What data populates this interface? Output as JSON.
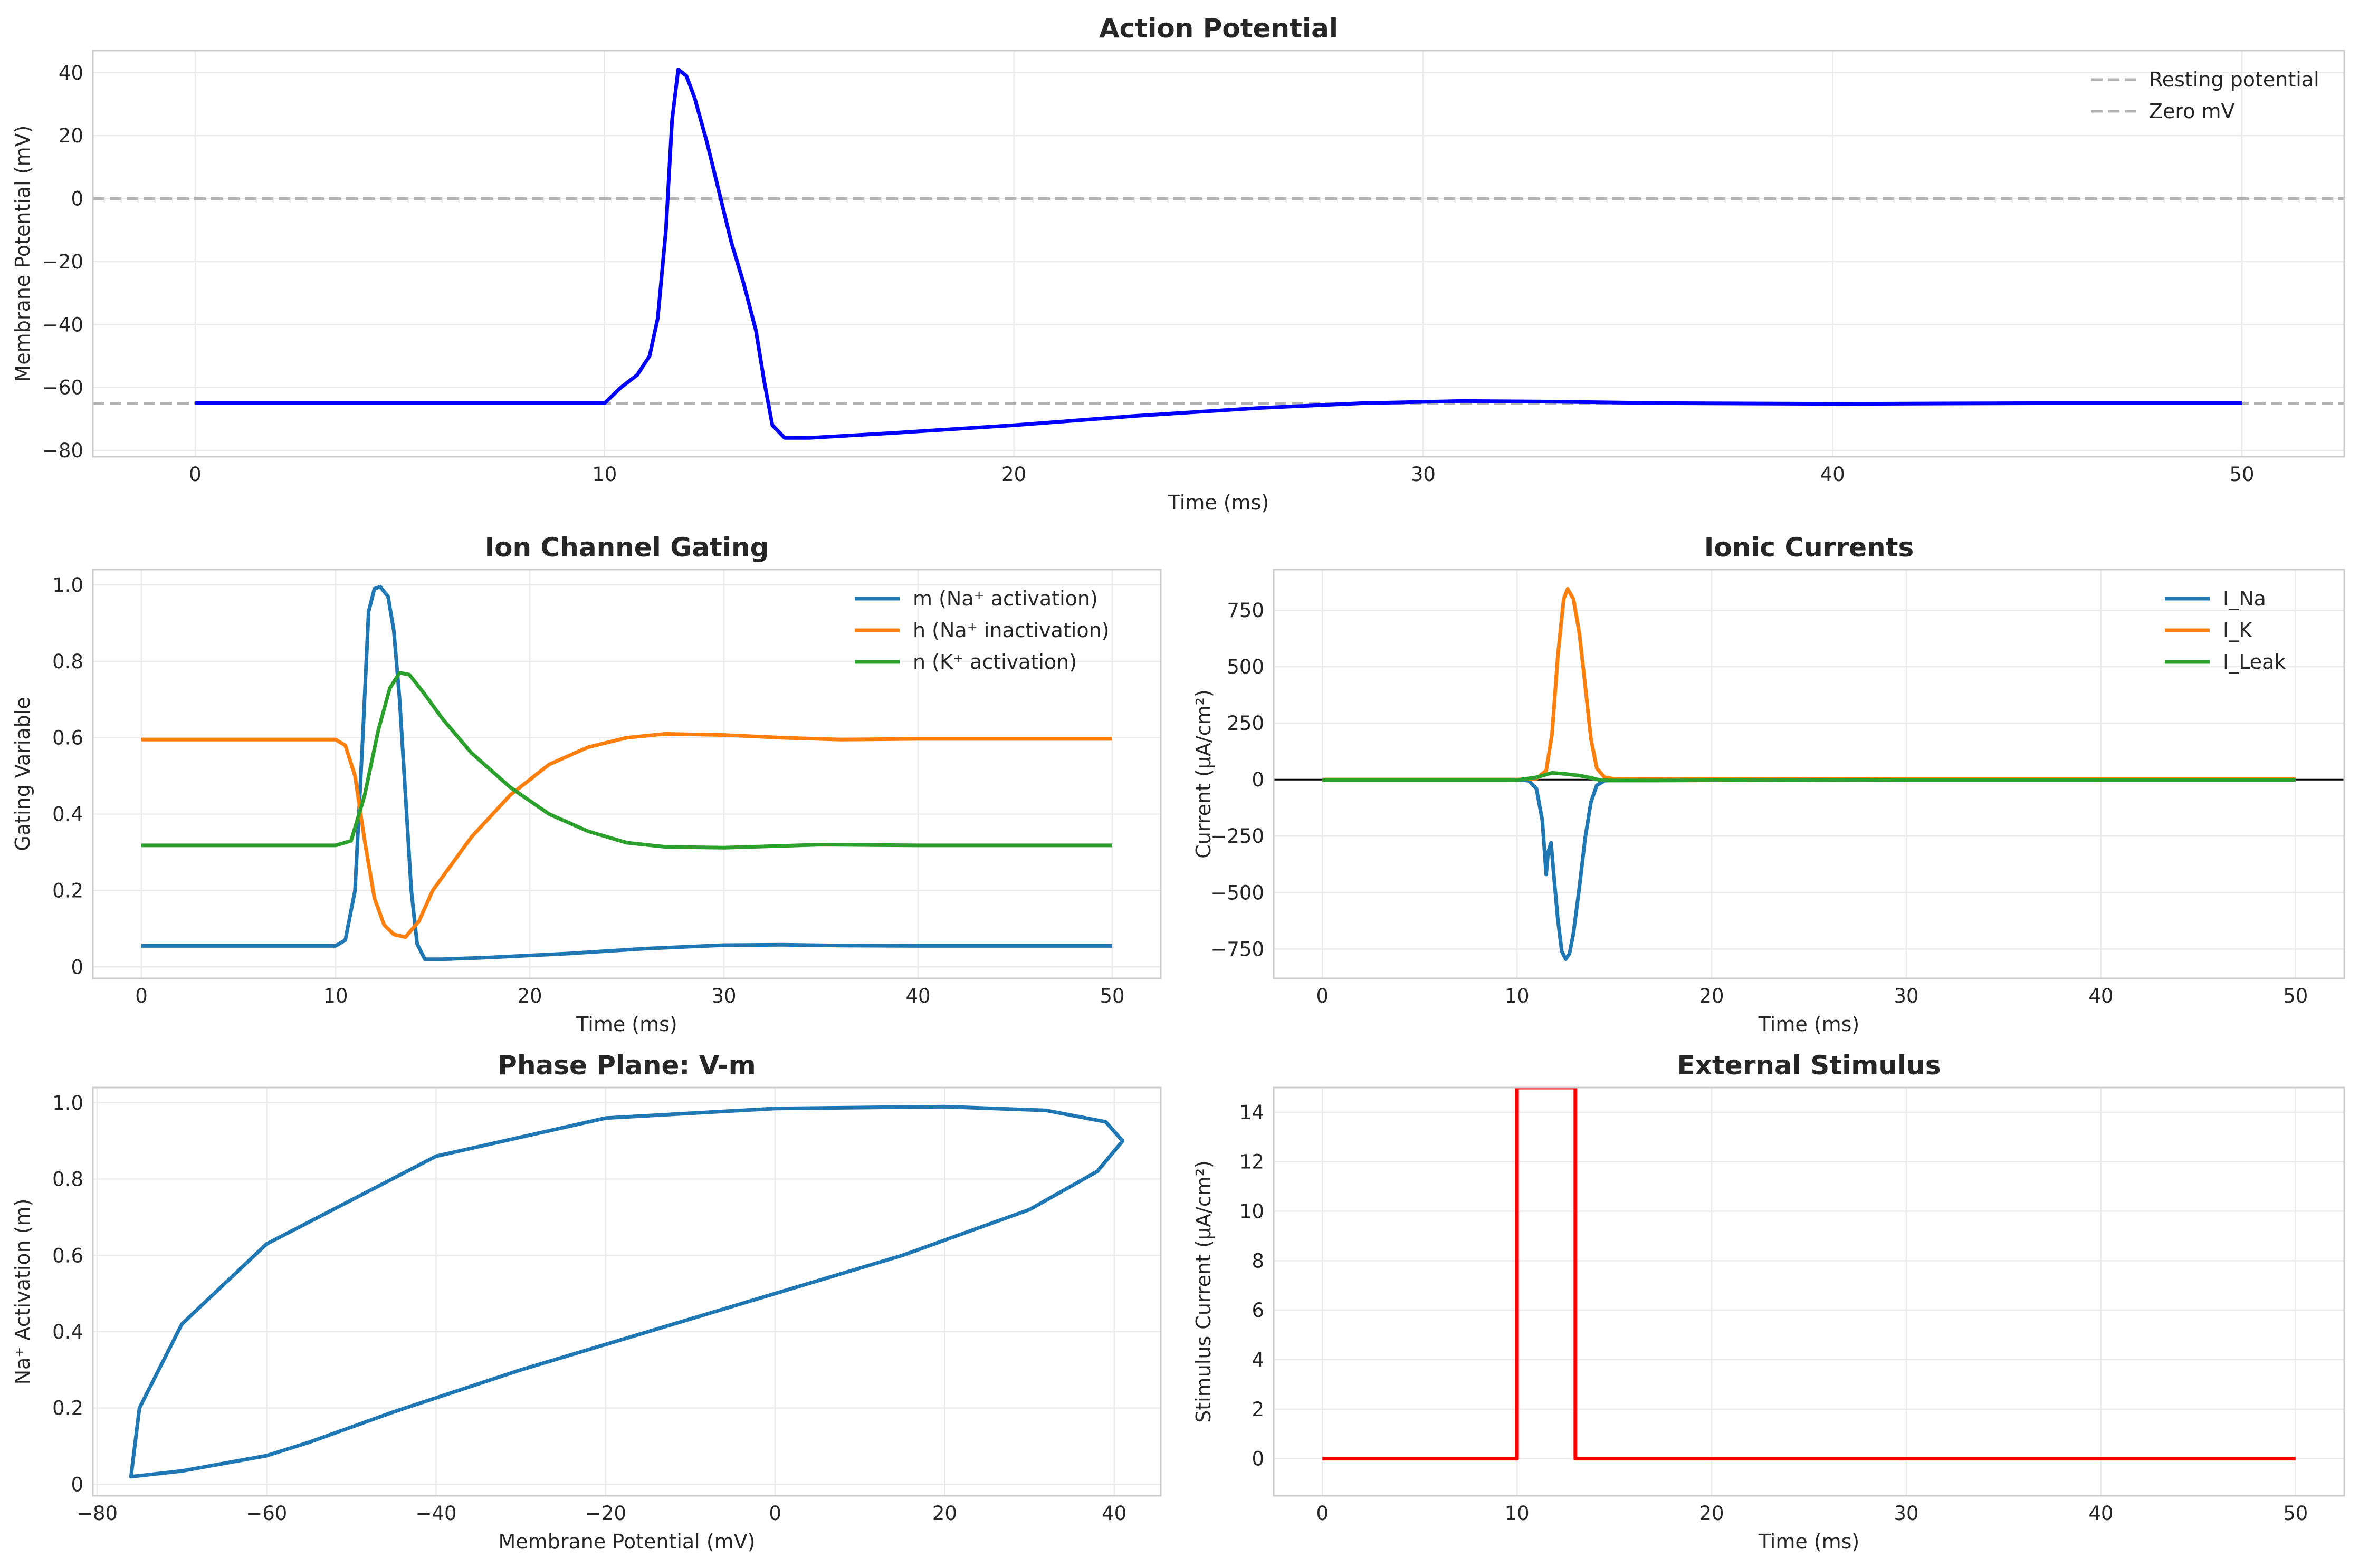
{
  "chart_data": [
    {
      "type": "line",
      "title": "Action Potential",
      "xlabel": "Time (ms)",
      "ylabel": "Membrane Potential (mV)",
      "xlim": [
        -2.5,
        52.5
      ],
      "ylim": [
        -82,
        47
      ],
      "xticks": [
        0,
        10,
        20,
        30,
        40,
        50
      ],
      "yticks": [
        -80,
        -60,
        -40,
        -20,
        0,
        20,
        40
      ],
      "grid": true,
      "legend": "top-right",
      "hlines": [
        {
          "name": "Resting potential",
          "y": -65,
          "color": "#b3b3b3",
          "style": "dashed"
        },
        {
          "name": "Zero mV",
          "y": 0,
          "color": "#b3b3b3",
          "style": "dashed"
        }
      ],
      "series": [
        {
          "color": "#0000ff",
          "x": [
            0,
            10,
            10.4,
            10.8,
            11.1,
            11.3,
            11.5,
            11.65,
            11.8,
            12.0,
            12.2,
            12.5,
            12.8,
            13.1,
            13.4,
            13.7,
            13.9,
            14.1,
            14.4,
            15,
            17,
            20,
            23,
            26,
            28.5,
            31,
            33,
            36,
            40,
            45,
            50
          ],
          "y": [
            -65,
            -65,
            -60,
            -56,
            -50,
            -38,
            -10,
            25,
            41,
            39,
            32,
            18,
            2,
            -14,
            -27,
            -42,
            -58,
            -72,
            -76,
            -76,
            -74.5,
            -72,
            -69,
            -66.5,
            -65,
            -64.3,
            -64.5,
            -65,
            -65.2,
            -65,
            -65
          ]
        }
      ]
    },
    {
      "type": "line",
      "title": "Ion Channel Gating",
      "xlabel": "Time (ms)",
      "ylabel": "Gating Variable",
      "xlim": [
        -2.5,
        52.5
      ],
      "ylim": [
        -0.03,
        1.04
      ],
      "xticks": [
        0,
        10,
        20,
        30,
        40,
        50
      ],
      "yticks": [
        0.0,
        0.2,
        0.4,
        0.6,
        0.8,
        1.0
      ],
      "grid": true,
      "legend": "top-right",
      "series": [
        {
          "name": "m (Na⁺ activation)",
          "color": "#1f77b4",
          "x": [
            0,
            10,
            10.5,
            11.0,
            11.4,
            11.7,
            12.0,
            12.3,
            12.7,
            13.0,
            13.3,
            13.6,
            13.9,
            14.2,
            14.6,
            15.5,
            18,
            22,
            26,
            30,
            33,
            36,
            40,
            45,
            50
          ],
          "y": [
            0.055,
            0.055,
            0.07,
            0.2,
            0.6,
            0.93,
            0.99,
            0.995,
            0.97,
            0.88,
            0.7,
            0.45,
            0.2,
            0.06,
            0.02,
            0.02,
            0.025,
            0.035,
            0.048,
            0.057,
            0.058,
            0.056,
            0.055,
            0.055,
            0.055
          ]
        },
        {
          "name": "h (Na⁺ inactivation)",
          "color": "#ff7f0e",
          "x": [
            0,
            10,
            10.5,
            11,
            11.5,
            12,
            12.5,
            13,
            13.6,
            14.3,
            15,
            17,
            19,
            21,
            23,
            25,
            27,
            30,
            33,
            36,
            40,
            45,
            50
          ],
          "y": [
            0.595,
            0.595,
            0.58,
            0.5,
            0.33,
            0.18,
            0.11,
            0.085,
            0.078,
            0.12,
            0.2,
            0.34,
            0.45,
            0.53,
            0.575,
            0.6,
            0.61,
            0.607,
            0.6,
            0.595,
            0.597,
            0.597,
            0.597
          ]
        },
        {
          "name": "n (K⁺ activation)",
          "color": "#2ca02c",
          "x": [
            0,
            10,
            10.8,
            11.5,
            12.2,
            12.8,
            13.3,
            13.8,
            14.5,
            15.5,
            17,
            19,
            21,
            23,
            25,
            27,
            30,
            35,
            40,
            45,
            50
          ],
          "y": [
            0.318,
            0.318,
            0.33,
            0.45,
            0.62,
            0.73,
            0.77,
            0.765,
            0.72,
            0.65,
            0.56,
            0.47,
            0.4,
            0.355,
            0.325,
            0.314,
            0.312,
            0.32,
            0.318,
            0.318,
            0.318
          ]
        }
      ]
    },
    {
      "type": "line",
      "title": "Ionic Currents",
      "xlabel": "Time (ms)",
      "ylabel": "Current (μA/cm²)",
      "xlim": [
        -2.5,
        52.5
      ],
      "ylim": [
        -880,
        930
      ],
      "xticks": [
        0,
        10,
        20,
        30,
        40,
        50
      ],
      "yticks": [
        -750,
        -500,
        -250,
        0,
        250,
        500,
        750
      ],
      "grid": true,
      "legend": "top-right",
      "hlines": [
        {
          "y": 0,
          "color": "#000000"
        }
      ],
      "series": [
        {
          "name": "I_Na",
          "color": "#1f77b4",
          "x": [
            0,
            10,
            10.6,
            11.0,
            11.3,
            11.5,
            11.6,
            11.75,
            11.9,
            12.1,
            12.3,
            12.5,
            12.7,
            12.9,
            13.2,
            13.5,
            13.8,
            14.1,
            14.5,
            15,
            20,
            30,
            40,
            50
          ],
          "y": [
            0,
            0,
            -5,
            -40,
            -180,
            -420,
            -320,
            -280,
            -430,
            -620,
            -760,
            -795,
            -770,
            -680,
            -480,
            -260,
            -100,
            -25,
            -5,
            -2,
            0,
            0,
            0,
            0
          ]
        },
        {
          "name": "I_K",
          "color": "#ff7f0e",
          "x": [
            0,
            10,
            11,
            11.5,
            11.8,
            12.1,
            12.4,
            12.6,
            12.9,
            13.2,
            13.5,
            13.8,
            14.1,
            14.5,
            15,
            20,
            30,
            40,
            50
          ],
          "y": [
            0,
            0,
            5,
            40,
            200,
            550,
            800,
            845,
            800,
            650,
            420,
            180,
            50,
            10,
            3,
            2,
            2,
            2,
            2
          ]
        },
        {
          "name": "I_Leak",
          "color": "#2ca02c",
          "x": [
            0,
            10,
            11,
            11.8,
            12.5,
            13.2,
            13.8,
            14.3,
            15,
            17,
            20,
            25,
            30,
            35,
            40,
            50
          ],
          "y": [
            -2,
            -2,
            10,
            30,
            25,
            18,
            8,
            -3,
            -4,
            -4,
            -3,
            -2,
            -1,
            -1,
            -1,
            -1
          ]
        }
      ]
    },
    {
      "type": "line",
      "title": "Phase Plane: V-m",
      "xlabel": "Membrane Potential (mV)",
      "ylabel": "Na⁺ Activation (m)",
      "xlim": [
        -80.5,
        45.5
      ],
      "ylim": [
        -0.03,
        1.04
      ],
      "xticks": [
        -80,
        -60,
        -40,
        -20,
        0,
        20,
        40
      ],
      "yticks": [
        0.0,
        0.2,
        0.4,
        0.6,
        0.8,
        1.0
      ],
      "grid": true,
      "series": [
        {
          "color": "#1f77b4",
          "x": [
            -65,
            -60,
            -55,
            -45,
            -30,
            -15,
            0,
            15,
            30,
            38,
            41,
            39,
            32,
            20,
            0,
            -20,
            -40,
            -60,
            -70,
            -75,
            -76,
            -74,
            -70,
            -65
          ],
          "y": [
            0.055,
            0.075,
            0.11,
            0.19,
            0.3,
            0.4,
            0.5,
            0.6,
            0.72,
            0.82,
            0.9,
            0.95,
            0.98,
            0.99,
            0.985,
            0.96,
            0.86,
            0.63,
            0.42,
            0.2,
            0.02,
            0.025,
            0.035,
            0.055
          ]
        }
      ]
    },
    {
      "type": "line",
      "title": "External Stimulus",
      "xlabel": "Time (ms)",
      "ylabel": "Stimulus Current (μA/cm²)",
      "xlim": [
        -2.5,
        52.5
      ],
      "ylim": [
        -1.5,
        15
      ],
      "xticks": [
        0,
        10,
        20,
        30,
        40,
        50
      ],
      "yticks": [
        0,
        2,
        4,
        6,
        8,
        10,
        12,
        14
      ],
      "grid": true,
      "series": [
        {
          "color": "#ff0000",
          "x": [
            0,
            10,
            10,
            13,
            13,
            50
          ],
          "y": [
            0,
            0,
            15,
            15,
            0,
            0
          ]
        }
      ]
    }
  ]
}
